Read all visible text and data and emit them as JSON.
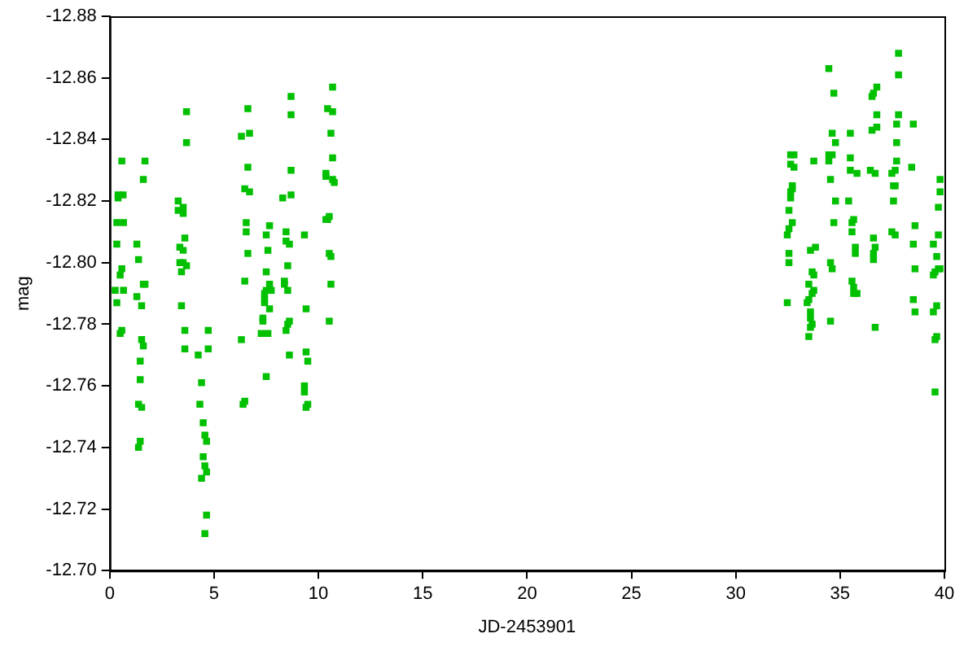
{
  "chart_data": {
    "type": "scatter",
    "xlabel": "JD-2453901",
    "ylabel": "mag",
    "color": "#00c000",
    "marker": "square",
    "xlim": [
      0,
      40
    ],
    "xticks": [
      0,
      5,
      10,
      15,
      20,
      25,
      30,
      35,
      40
    ],
    "ylim": [
      -12.7,
      -12.88
    ],
    "yticks": [
      {
        "value": -12.88,
        "label": "-12.88"
      },
      {
        "value": -12.86,
        "label": "-12.86"
      },
      {
        "value": -12.84,
        "label": "-12.84"
      },
      {
        "value": -12.82,
        "label": "-12.82"
      },
      {
        "value": -12.8,
        "label": "-12.80"
      },
      {
        "value": -12.78,
        "label": "-12.78"
      },
      {
        "value": -12.76,
        "label": "-12.76"
      },
      {
        "value": -12.74,
        "label": "-12.74"
      },
      {
        "value": -12.72,
        "label": "-12.72"
      },
      {
        "value": -12.7,
        "label": "-12.70"
      }
    ],
    "x": [
      0.58,
      1.69,
      1.61,
      0.4,
      0.64,
      0.4,
      0.34,
      0.66,
      0.34,
      1.3,
      1.38,
      0.58,
      0.5,
      0.26,
      0.66,
      1.61,
      1.69,
      1.3,
      0.34,
      1.53,
      0.58,
      0.5,
      1.53,
      1.61,
      1.46,
      1.46,
      1.38,
      1.53,
      1.46,
      1.38,
      3.68,
      3.68,
      3.28,
      3.52,
      3.28,
      3.52,
      3.6,
      3.36,
      3.52,
      3.36,
      3.52,
      3.68,
      3.44,
      3.44,
      3.6,
      3.6,
      4.72,
      4.72,
      4.24,
      4.4,
      4.32,
      4.48,
      4.56,
      4.64,
      4.48,
      4.56,
      4.64,
      4.4,
      4.64,
      4.56,
      10.68,
      8.69,
      6.62,
      8.69,
      10.44,
      10.68,
      6.31,
      6.7,
      10.6,
      10.68,
      6.62,
      8.69,
      10.36,
      10.36,
      10.68,
      10.76,
      6.47,
      6.7,
      8.29,
      8.69,
      10.52,
      10.36,
      10.44,
      6.54,
      6.54,
      7.66,
      7.5,
      8.45,
      8.45,
      8.61,
      9.33,
      6.62,
      7.58,
      10.52,
      10.6,
      8.53,
      7.5,
      6.47,
      7.66,
      7.5,
      7.74,
      7.42,
      7.42,
      7.42,
      8.37,
      8.37,
      8.53,
      10.6,
      7.66,
      9.41,
      7.34,
      7.34,
      8.61,
      8.53,
      8.45,
      10.52,
      7.26,
      7.58,
      6.31,
      8.61,
      9.41,
      9.49,
      7.5,
      9.33,
      9.33,
      9.49,
      9.41,
      6.47,
      6.39,
      37.8,
      34.46,
      37.8,
      34.7,
      36.76,
      36.6,
      36.53,
      36.76,
      37.8,
      37.71,
      38.51,
      36.76,
      36.53,
      34.62,
      35.49,
      34.78,
      37.71,
      32.63,
      32.79,
      34.46,
      34.62,
      34.46,
      35.49,
      33.74,
      32.63,
      32.79,
      37.71,
      38.43,
      35.49,
      35.81,
      36.45,
      36.68,
      37.64,
      37.48,
      39.79,
      34.54,
      32.71,
      32.71,
      32.63,
      32.63,
      37.64,
      37.56,
      39.79,
      34.78,
      35.41,
      37.56,
      39.71,
      32.55,
      32.71,
      34.7,
      35.57,
      35.65,
      35.57,
      38.59,
      32.55,
      32.47,
      37.48,
      37.64,
      39.71,
      36.6,
      38.51,
      39.47,
      33.82,
      33.58,
      35.73,
      35.73,
      36.68,
      36.6,
      36.6,
      32.55,
      32.55,
      34.54,
      34.62,
      39.63,
      39.71,
      39.55,
      39.47,
      39.79,
      38.59,
      33.66,
      33.74,
      35.57,
      35.65,
      35.65,
      35.81,
      33.5,
      33.74,
      33.66,
      33.5,
      33.42,
      32.47,
      33.58,
      33.58,
      33.66,
      33.58,
      33.5,
      34.54,
      36.68,
      38.51,
      38.59,
      39.63,
      39.47,
      39.63,
      39.55,
      39.55
    ],
    "values": [
      -12.833,
      -12.833,
      -12.827,
      -12.822,
      -12.822,
      -12.821,
      -12.813,
      -12.813,
      -12.806,
      -12.806,
      -12.801,
      -12.798,
      -12.796,
      -12.791,
      -12.791,
      -12.793,
      -12.793,
      -12.789,
      -12.787,
      -12.786,
      -12.778,
      -12.777,
      -12.775,
      -12.773,
      -12.768,
      -12.762,
      -12.754,
      -12.753,
      -12.742,
      -12.74,
      -12.849,
      -12.839,
      -12.82,
      -12.818,
      -12.817,
      -12.816,
      -12.808,
      -12.805,
      -12.804,
      -12.8,
      -12.8,
      -12.799,
      -12.797,
      -12.786,
      -12.778,
      -12.772,
      -12.778,
      -12.772,
      -12.77,
      -12.761,
      -12.754,
      -12.748,
      -12.744,
      -12.742,
      -12.737,
      -12.734,
      -12.732,
      -12.73,
      -12.718,
      -12.712,
      -12.857,
      -12.854,
      -12.85,
      -12.848,
      -12.85,
      -12.849,
      -12.841,
      -12.842,
      -12.842,
      -12.834,
      -12.831,
      -12.83,
      -12.829,
      -12.828,
      -12.827,
      -12.826,
      -12.824,
      -12.823,
      -12.821,
      -12.822,
      -12.815,
      -12.814,
      -12.814,
      -12.813,
      -12.81,
      -12.812,
      -12.809,
      -12.81,
      -12.807,
      -12.806,
      -12.809,
      -12.803,
      -12.804,
      -12.803,
      -12.802,
      -12.799,
      -12.797,
      -12.794,
      -12.793,
      -12.791,
      -12.791,
      -12.79,
      -12.788,
      -12.787,
      -12.794,
      -12.793,
      -12.791,
      -12.793,
      -12.785,
      -12.785,
      -12.782,
      -12.781,
      -12.781,
      -12.78,
      -12.778,
      -12.781,
      -12.777,
      -12.777,
      -12.775,
      -12.77,
      -12.771,
      -12.768,
      -12.763,
      -12.76,
      -12.758,
      -12.754,
      -12.753,
      -12.755,
      -12.754,
      -12.868,
      -12.863,
      -12.861,
      -12.855,
      -12.857,
      -12.855,
      -12.854,
      -12.848,
      -12.848,
      -12.845,
      -12.845,
      -12.844,
      -12.843,
      -12.842,
      -12.842,
      -12.839,
      -12.839,
      -12.835,
      -12.835,
      -12.835,
      -12.835,
      -12.833,
      -12.834,
      -12.833,
      -12.832,
      -12.831,
      -12.833,
      -12.831,
      -12.83,
      -12.829,
      -12.83,
      -12.829,
      -12.83,
      -12.829,
      -12.827,
      -12.827,
      -12.825,
      -12.824,
      -12.823,
      -12.821,
      -12.825,
      -12.825,
      -12.823,
      -12.82,
      -12.82,
      -12.82,
      -12.818,
      -12.817,
      -12.813,
      -12.813,
      -12.813,
      -12.814,
      -12.81,
      -12.812,
      -12.811,
      -12.809,
      -12.81,
      -12.809,
      -12.809,
      -12.808,
      -12.806,
      -12.806,
      -12.805,
      -12.804,
      -12.805,
      -12.803,
      -12.805,
      -12.803,
      -12.801,
      -12.803,
      -12.8,
      -12.8,
      -12.798,
      -12.802,
      -12.798,
      -12.797,
      -12.796,
      -12.798,
      -12.798,
      -12.797,
      -12.796,
      -12.794,
      -12.792,
      -12.79,
      -12.79,
      -12.793,
      -12.791,
      -12.79,
      -12.788,
      -12.787,
      -12.787,
      -12.784,
      -12.782,
      -12.78,
      -12.779,
      -12.776,
      -12.781,
      -12.779,
      -12.788,
      -12.784,
      -12.786,
      -12.784,
      -12.776,
      -12.775,
      -12.758
    ]
  }
}
